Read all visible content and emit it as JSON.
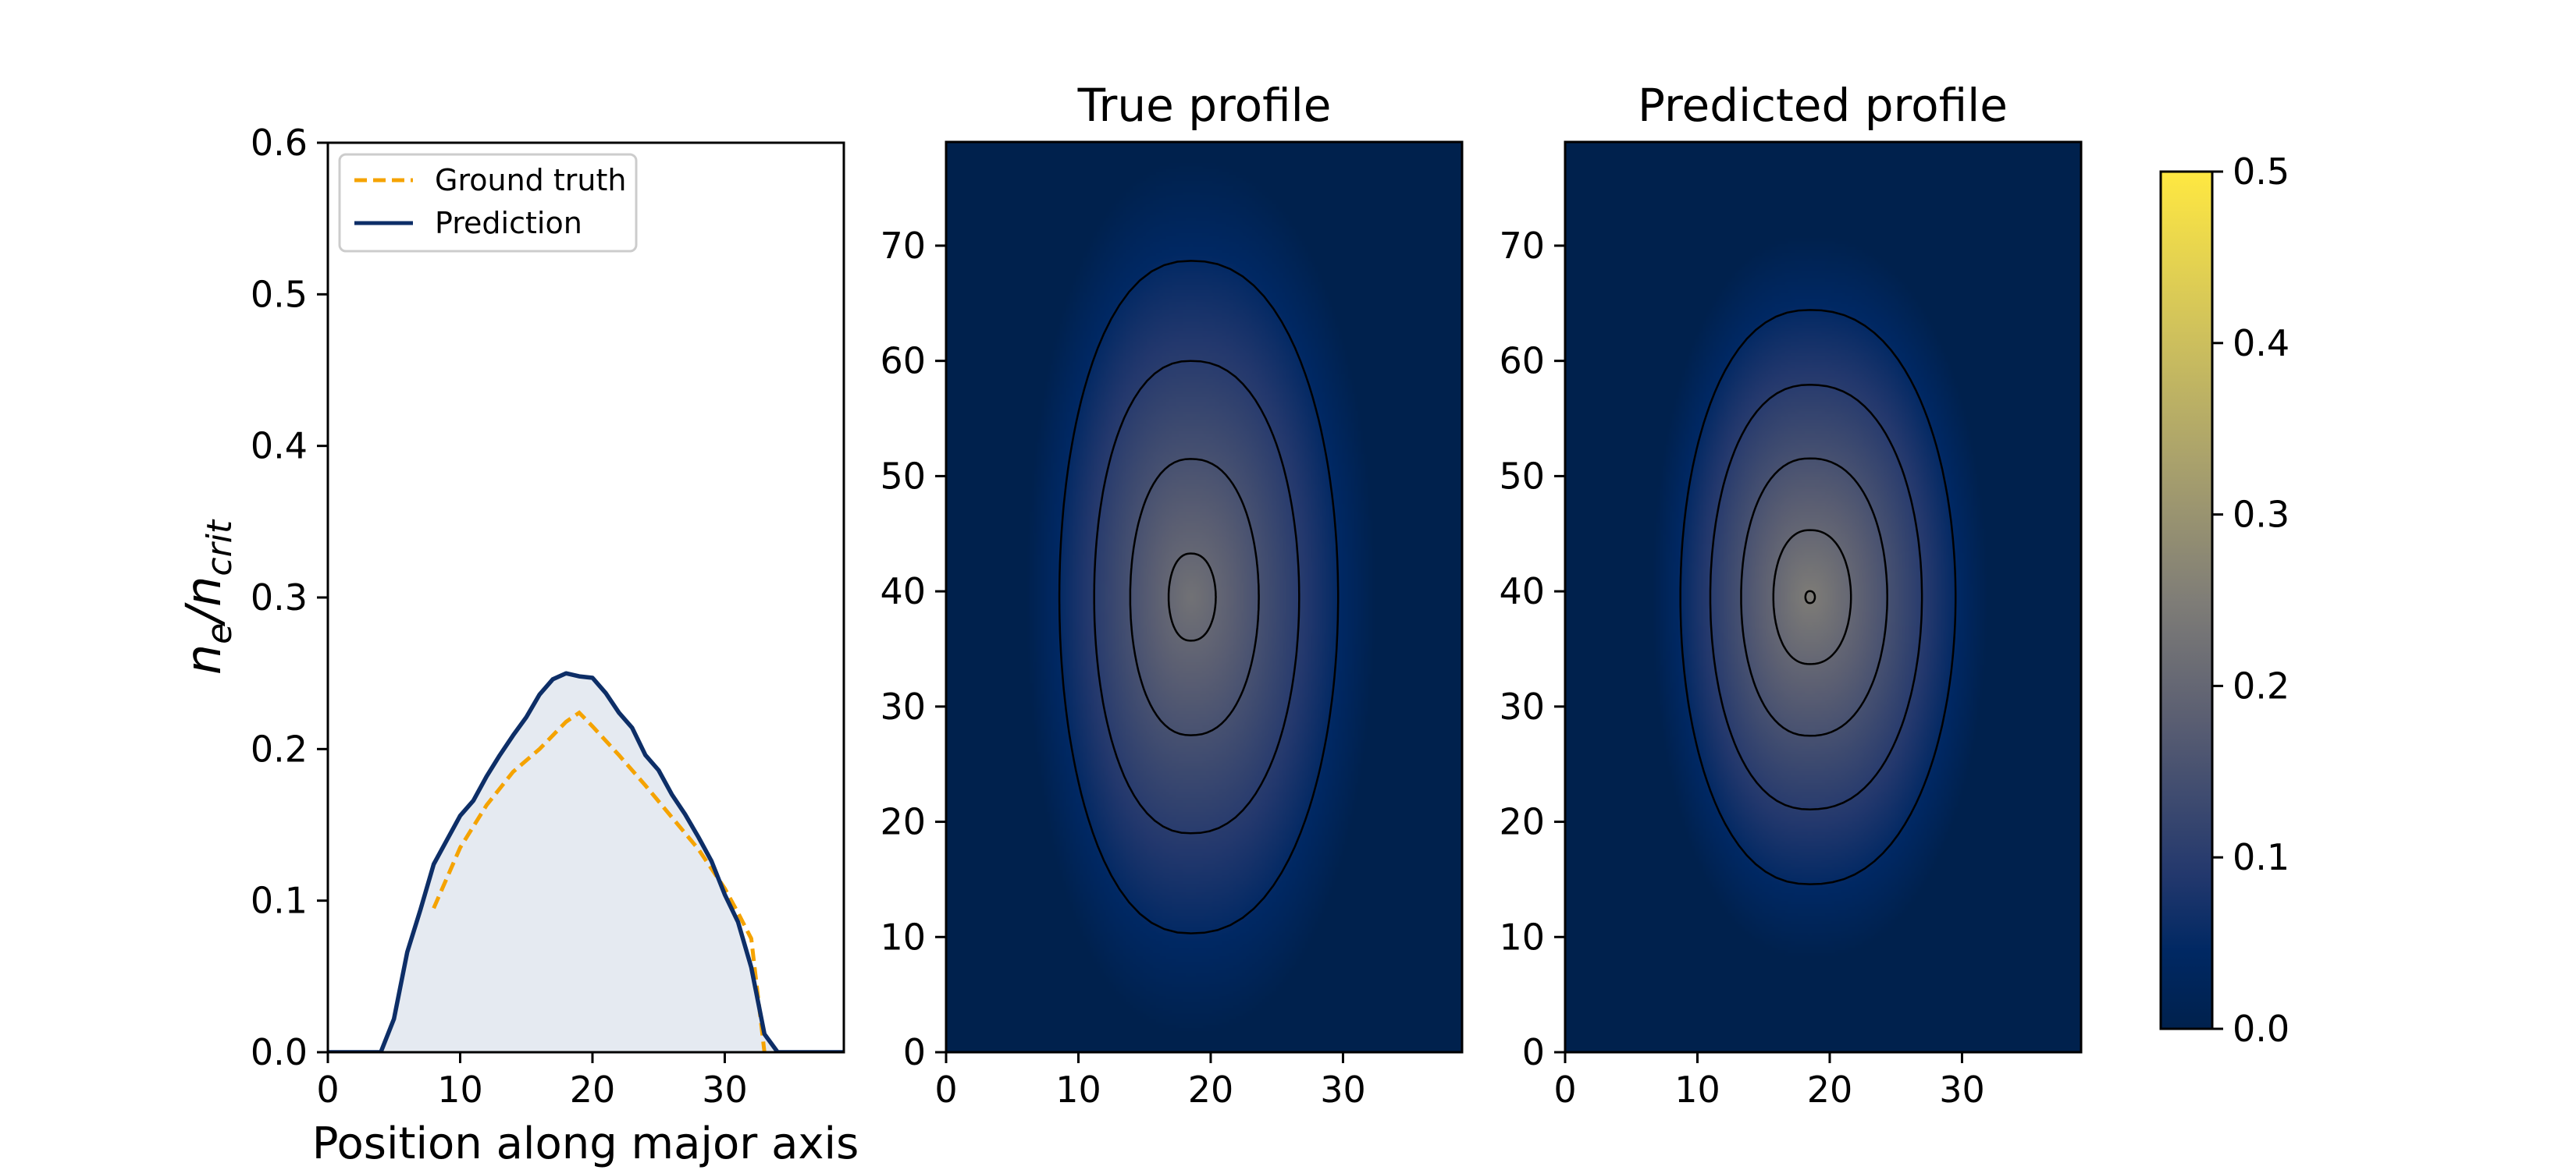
{
  "chart_data": [
    {
      "type": "area",
      "ylabel": "n_e/n_crit",
      "ylabel_main": "n",
      "ylabel_sub1": "e",
      "ylabel_sep": "/n",
      "ylabel_sub2": "crit",
      "xlabel": "Position along major axis",
      "xlim": [
        0,
        39
      ],
      "ylim": [
        0,
        0.6
      ],
      "xticks": [
        "0",
        "10",
        "20",
        "30"
      ],
      "yticks": [
        "0.0",
        "0.1",
        "0.2",
        "0.3",
        "0.4",
        "0.5",
        "0.6"
      ],
      "legend_position": "top-left",
      "legend": {
        "ground_truth": "Ground truth",
        "prediction": "Prediction"
      },
      "colors": {
        "ground_truth": "#f5a300",
        "prediction": "#0d2e67",
        "fill": "#e5eaf1"
      },
      "series": [
        {
          "name": "Ground truth",
          "style": "dashed",
          "x": [
            8,
            10,
            12,
            14,
            16,
            18,
            19,
            20,
            22,
            24,
            26,
            28,
            30,
            31,
            32,
            33
          ],
          "values": [
            0.095,
            0.135,
            0.163,
            0.185,
            0.2,
            0.218,
            0.224,
            0.215,
            0.196,
            0.176,
            0.155,
            0.134,
            0.108,
            0.092,
            0.075,
            0.0
          ]
        },
        {
          "name": "Prediction",
          "style": "solid",
          "x": [
            0,
            4,
            5,
            6,
            7,
            8,
            9,
            10,
            11,
            12,
            13,
            14,
            15,
            16,
            17,
            18,
            19,
            20,
            21,
            22,
            23,
            24,
            25,
            26,
            27,
            28,
            29,
            30,
            31,
            32,
            33,
            34,
            39
          ],
          "values": [
            0.0,
            0.0,
            0.022,
            0.066,
            0.094,
            0.124,
            0.14,
            0.156,
            0.166,
            0.182,
            0.196,
            0.209,
            0.221,
            0.236,
            0.246,
            0.25,
            0.248,
            0.247,
            0.237,
            0.224,
            0.214,
            0.196,
            0.186,
            0.17,
            0.157,
            0.142,
            0.126,
            0.104,
            0.086,
            0.056,
            0.012,
            0.0,
            0.0
          ]
        }
      ]
    },
    {
      "type": "heatmap",
      "title": "True profile",
      "xlim": [
        0,
        39
      ],
      "ylim": [
        0,
        79
      ],
      "xticks": [
        "0",
        "10",
        "20",
        "30"
      ],
      "yticks": [
        "0",
        "10",
        "20",
        "30",
        "40",
        "50",
        "60",
        "70"
      ],
      "field": {
        "cx": 18.5,
        "cy": 39.5,
        "peak": 0.225,
        "left_extent": 12.5,
        "right_extent": 14.0,
        "half_height": 38.0
      },
      "contour_levels": [
        0.05,
        0.1,
        0.15,
        0.2
      ]
    },
    {
      "type": "heatmap",
      "title": "Predicted profile",
      "xlim": [
        0,
        39
      ],
      "ylim": [
        0,
        79
      ],
      "xticks": [
        "0",
        "10",
        "20",
        "30"
      ],
      "yticks": [
        "0",
        "10",
        "20",
        "30",
        "40",
        "50",
        "60",
        "70"
      ],
      "field": {
        "cx": 18.5,
        "cy": 39.5,
        "peak": 0.25,
        "left_extent": 12.0,
        "right_extent": 13.5,
        "half_height": 31.5
      },
      "contour_levels": [
        0.05,
        0.1,
        0.15,
        0.2,
        0.245
      ]
    }
  ],
  "colorbar": {
    "min": 0.0,
    "max": 0.5,
    "ticks": [
      "0.0",
      "0.1",
      "0.2",
      "0.3",
      "0.4",
      "0.5"
    ],
    "colormap": [
      "#00214d",
      "#002863",
      "#23386d",
      "#5a5e72",
      "#7f7d77",
      "#a9a16c",
      "#d1c35b",
      "#ffe841"
    ]
  }
}
